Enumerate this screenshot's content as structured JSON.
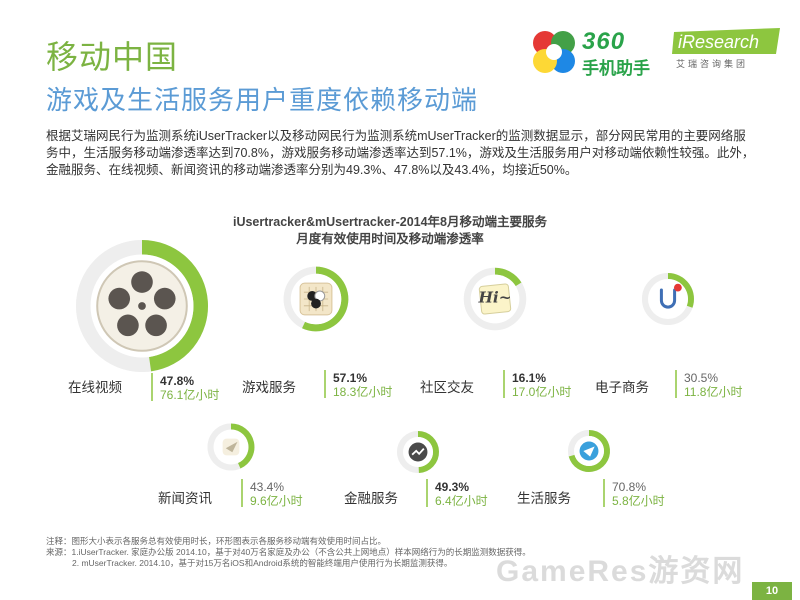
{
  "header": {
    "title": "移动中国",
    "subtitle": "游戏及生活服务用户重度依赖移动端"
  },
  "logos": {
    "logo360_line1": "360",
    "logo360_line2": "手机助手",
    "iresearch_en": "iResearch",
    "iresearch_cn": "艾瑞咨询集团"
  },
  "body_text": "根据艾瑞网民行为监测系统iUserTracker以及移动网民行为监测系统mUserTracker的监测数据显示，部分网民常用的主要网络服务中，生活服务移动端渗透率达到70.8%，游戏服务移动端渗透率达到57.1%，游戏及生活服务用户对移动端依赖性较强。此外，金融服务、在线视频、新闻资讯的移动端渗透率分别为49.3%、47.8%以及43.4%，均接近50%。",
  "chart_data": {
    "type": "pie",
    "title_line1": "iUsertracker&mUsertracker-2014年8月移动端主要服务",
    "title_line2": "月度有效使用时间及移动端渗透率",
    "items": [
      {
        "label": "在线视频",
        "pct": 47.8,
        "pct_text": "47.8%",
        "hours": 76.1,
        "hours_text": "76.1亿小时",
        "icon": "film-reel-icon"
      },
      {
        "label": "游戏服务",
        "pct": 57.1,
        "pct_text": "57.1%",
        "hours": 18.3,
        "hours_text": "18.3亿小时",
        "icon": "go-board-icon"
      },
      {
        "label": "社区交友",
        "pct": 16.1,
        "pct_text": "16.1%",
        "hours": 17.0,
        "hours_text": "17.0亿小时",
        "icon": "hi-sticky-note-icon"
      },
      {
        "label": "电子商务",
        "pct": 30.5,
        "pct_text": "30.5%",
        "hours": 11.8,
        "hours_text": "11.8亿小时",
        "icon": "magnet-icon"
      },
      {
        "label": "新闻资讯",
        "pct": 43.4,
        "pct_text": "43.4%",
        "hours": 9.6,
        "hours_text": "9.6亿小时",
        "icon": "paper-plane-icon"
      },
      {
        "label": "金融服务",
        "pct": 49.3,
        "pct_text": "49.3%",
        "hours": 6.4,
        "hours_text": "6.4亿小时",
        "icon": "trend-line-icon"
      },
      {
        "label": "生活服务",
        "pct": 70.8,
        "pct_text": "70.8%",
        "hours": 5.8,
        "hours_text": "5.8亿小时",
        "icon": "send-arrow-icon"
      }
    ],
    "colors": {
      "ring": "#8dc63f",
      "ring_bg": "#eeeeee",
      "hours": "#7cb342"
    }
  },
  "notes": {
    "line1": "注释：图形大小表示各服务总有效使用时长，环形图表示各服务移动端有效使用时间占比。",
    "line2": "来源：1.iUserTracker. 家庭办公版 2014.10，基于对40万名家庭及办公（不含公共上网地点）样本网络行为的长期监测数据获得。",
    "line3": "2. mUserTracker. 2014.10，基于对15万名iOS和Android系统的智能终端用户使用行为长期监测获得。"
  },
  "watermark": "GameRes游资网",
  "page_number": "10"
}
